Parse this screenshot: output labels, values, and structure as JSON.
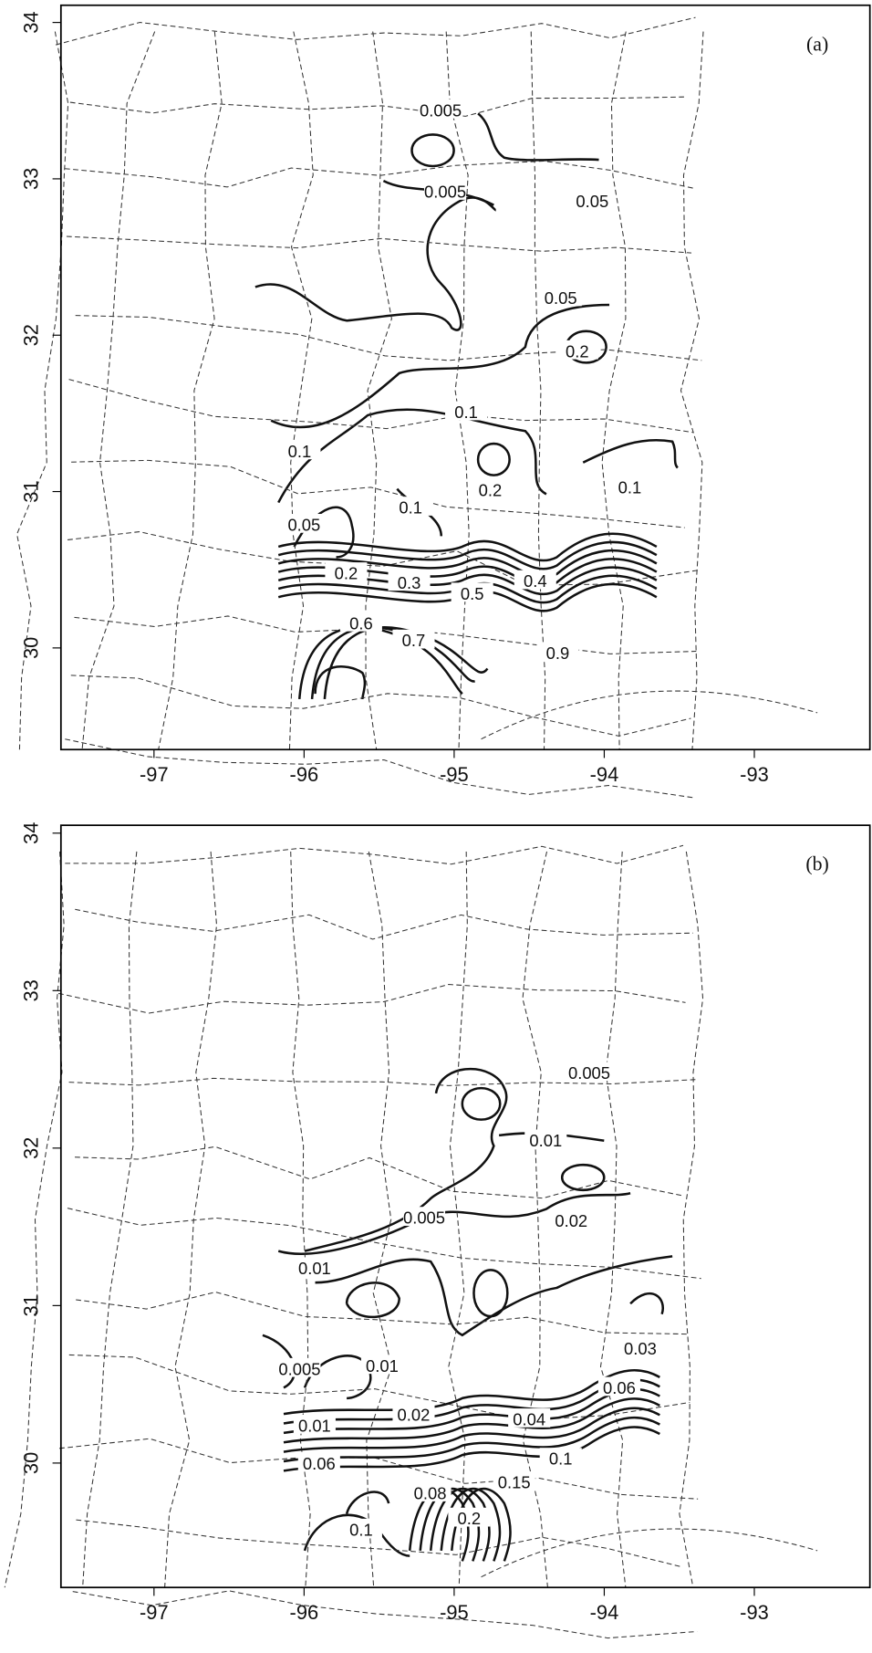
{
  "panels": [
    {
      "label": "(a)",
      "xlim": [
        -97.62,
        -92.23
      ],
      "ylim": [
        29.35,
        34.11
      ],
      "xticks": [
        -97,
        -96,
        -95,
        -94,
        -93
      ],
      "yticks": [
        30,
        31,
        32,
        33,
        34
      ],
      "contour_labels": [
        {
          "value": 0.005,
          "lon": -95.09,
          "lat": 33.44
        },
        {
          "value": 0.005,
          "lon": -95.06,
          "lat": 32.92
        },
        {
          "value": 0.05,
          "lon": -94.08,
          "lat": 32.86
        },
        {
          "value": 0.05,
          "lon": -94.29,
          "lat": 32.24
        },
        {
          "value": 0.2,
          "lon": -94.18,
          "lat": 31.9
        },
        {
          "value": 0.1,
          "lon": -94.92,
          "lat": 31.51
        },
        {
          "value": 0.1,
          "lon": -96.03,
          "lat": 31.26
        },
        {
          "value": 0.2,
          "lon": -94.76,
          "lat": 31.01
        },
        {
          "value": 0.1,
          "lon": -93.83,
          "lat": 31.03
        },
        {
          "value": 0.1,
          "lon": -95.29,
          "lat": 30.9
        },
        {
          "value": 0.05,
          "lon": -96.0,
          "lat": 30.79
        },
        {
          "value": 0.2,
          "lon": -95.72,
          "lat": 30.48
        },
        {
          "value": 0.3,
          "lon": -95.3,
          "lat": 30.42
        },
        {
          "value": 0.5,
          "lon": -94.88,
          "lat": 30.35
        },
        {
          "value": 0.4,
          "lon": -94.46,
          "lat": 30.43
        },
        {
          "value": 0.6,
          "lon": -95.62,
          "lat": 30.16
        },
        {
          "value": 0.7,
          "lon": -95.27,
          "lat": 30.05
        },
        {
          "value": 0.9,
          "lon": -94.31,
          "lat": 29.97
        }
      ]
    },
    {
      "label": "(b)",
      "xlim": [
        -97.62,
        -92.23
      ],
      "ylim": [
        29.21,
        34.05
      ],
      "xticks": [
        -97,
        -96,
        -95,
        -94,
        -93
      ],
      "yticks": [
        30,
        31,
        32,
        33,
        34
      ],
      "contour_labels": [
        {
          "value": 0.005,
          "lon": -94.1,
          "lat": 32.48
        },
        {
          "value": 0.01,
          "lon": -94.39,
          "lat": 32.05
        },
        {
          "value": 0.005,
          "lon": -95.2,
          "lat": 31.56
        },
        {
          "value": 0.02,
          "lon": -94.22,
          "lat": 31.54
        },
        {
          "value": 0.01,
          "lon": -95.93,
          "lat": 31.24
        },
        {
          "value": 0.005,
          "lon": -96.03,
          "lat": 30.6
        },
        {
          "value": 0.01,
          "lon": -95.48,
          "lat": 30.62
        },
        {
          "value": 0.03,
          "lon": -93.76,
          "lat": 30.73
        },
        {
          "value": 0.02,
          "lon": -95.27,
          "lat": 30.31
        },
        {
          "value": 0.04,
          "lon": -94.5,
          "lat": 30.28
        },
        {
          "value": 0.06,
          "lon": -93.9,
          "lat": 30.48
        },
        {
          "value": 0.01,
          "lon": -95.93,
          "lat": 30.24
        },
        {
          "value": 0.06,
          "lon": -95.9,
          "lat": 30.0
        },
        {
          "value": 0.1,
          "lon": -94.29,
          "lat": 30.03
        },
        {
          "value": 0.15,
          "lon": -94.6,
          "lat": 29.88
        },
        {
          "value": 0.08,
          "lon": -95.16,
          "lat": 29.81
        },
        {
          "value": 0.2,
          "lon": -94.9,
          "lat": 29.65
        },
        {
          "value": 0.1,
          "lon": -95.62,
          "lat": 29.58
        }
      ]
    }
  ]
}
